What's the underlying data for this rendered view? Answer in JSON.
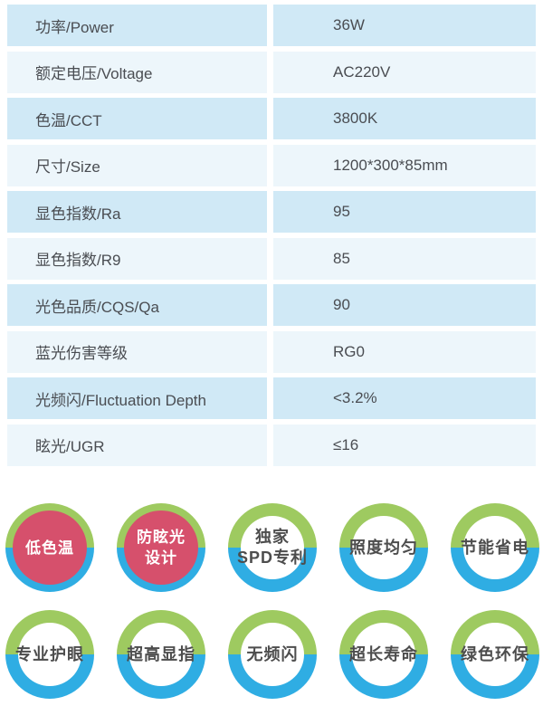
{
  "table": {
    "rows": [
      {
        "label": "功率/Power",
        "value": "36W"
      },
      {
        "label": "额定电压/Voltage",
        "value": "AC220V"
      },
      {
        "label": "色温/CCT",
        "value": "3800K"
      },
      {
        "label": "尺寸/Size",
        "value": "1200*300*85mm"
      },
      {
        "label": "显色指数/Ra",
        "value": "95"
      },
      {
        "label": "显色指数/R9",
        "value": "85"
      },
      {
        "label": "光色品质/CQS/Qa",
        "value": "90"
      },
      {
        "label": "蓝光伤害等级",
        "value": "RG0"
      },
      {
        "label": "光频闪/Fluctuation Depth",
        "value": "<3.2%"
      },
      {
        "label": "眩光/UGR",
        "value": "≤16"
      }
    ],
    "colors": {
      "row_alt": "#d0e9f6",
      "row_base": "#edf6fb",
      "text": "#4a4d52"
    }
  },
  "badges": {
    "rows": [
      [
        {
          "style": "red",
          "lines": [
            "低色温"
          ]
        },
        {
          "style": "red",
          "lines": [
            "防眩光",
            "设计"
          ]
        },
        {
          "style": "white",
          "lines": [
            "独家",
            "SPD专利"
          ]
        },
        {
          "style": "white",
          "lines": [
            "照度均匀"
          ]
        },
        {
          "style": "white",
          "lines": [
            "节能省电"
          ]
        }
      ],
      [
        {
          "style": "white",
          "lines": [
            "专业护眼"
          ]
        },
        {
          "style": "white",
          "lines": [
            "超高显指"
          ]
        },
        {
          "style": "white",
          "lines": [
            "无频闪"
          ]
        },
        {
          "style": "white",
          "lines": [
            "超长寿命"
          ]
        },
        {
          "style": "white",
          "lines": [
            "绿色环保"
          ]
        }
      ]
    ],
    "colors": {
      "ring_top": "#9eca60",
      "ring_bottom": "#2fade3",
      "center_red": "#d6506c",
      "text_dark": "#4d4d4d",
      "text_light": "#ffffff"
    }
  }
}
